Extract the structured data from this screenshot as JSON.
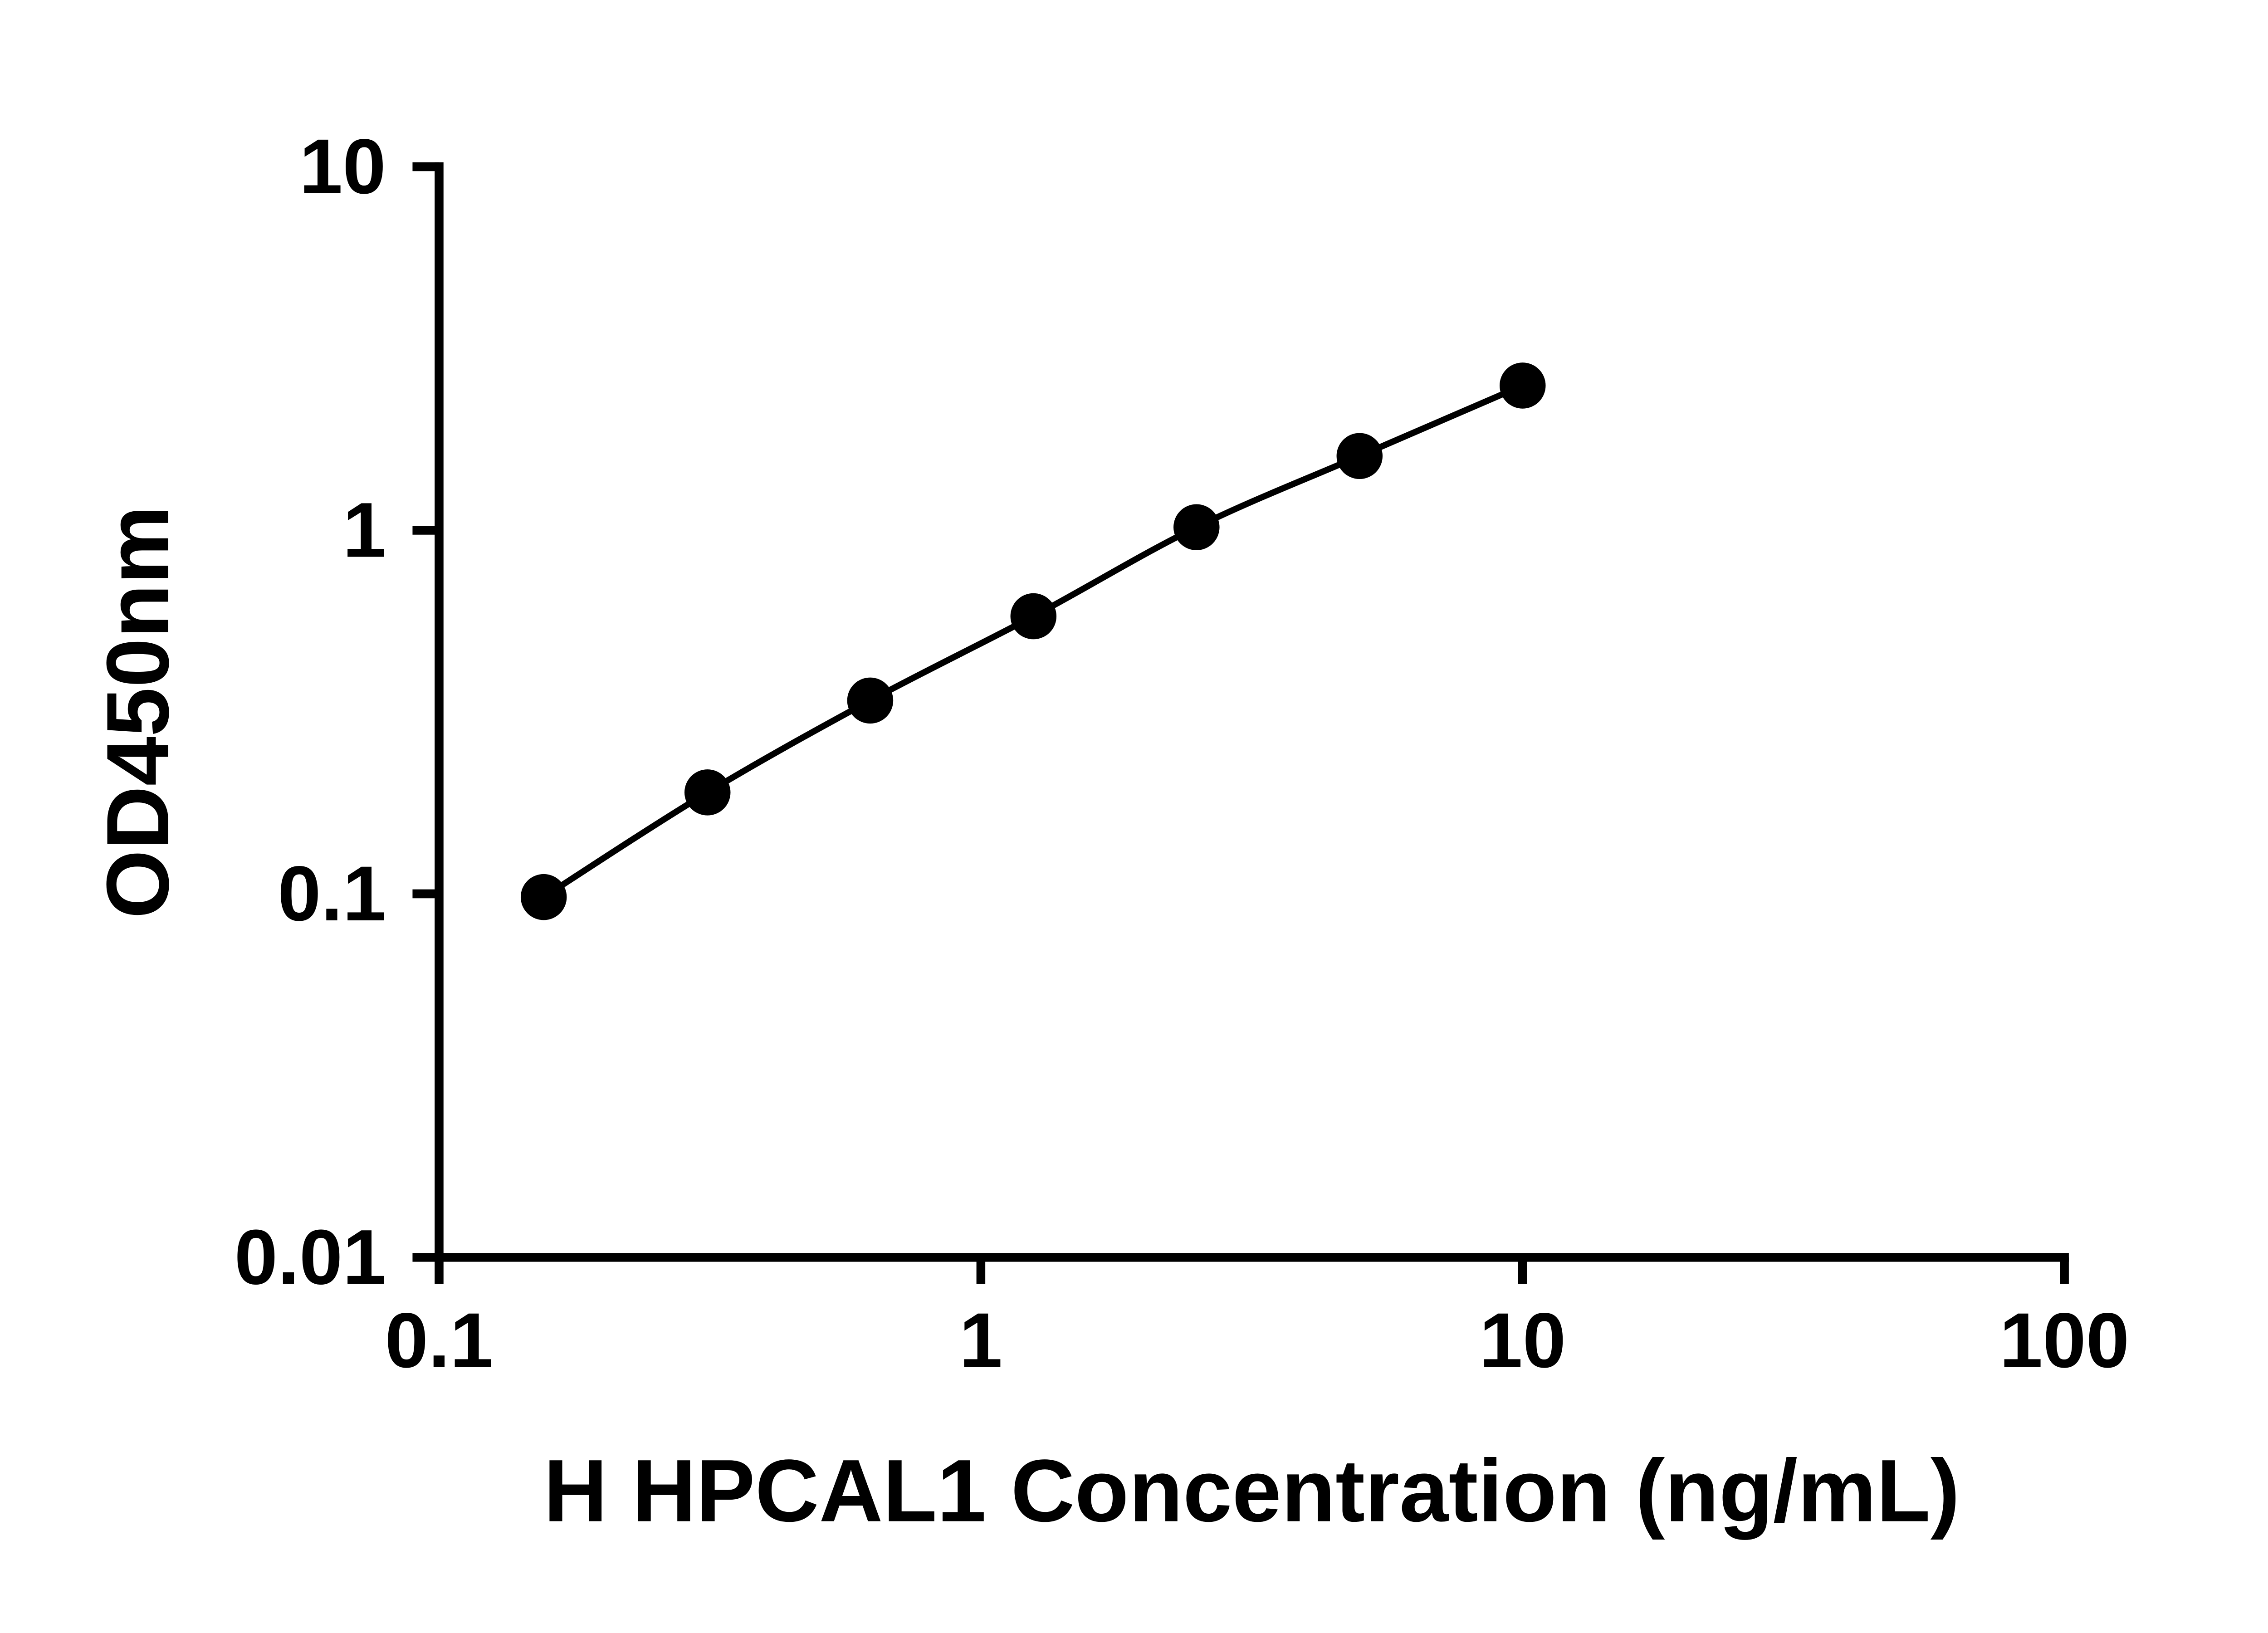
{
  "chart_data": {
    "type": "line",
    "xlabel": "H HPCAL1 Concentration (ng/mL)",
    "ylabel": "OD450nm",
    "x_scale": "log10",
    "y_scale": "log10",
    "xlim": [
      0.1,
      100
    ],
    "ylim": [
      0.01,
      10
    ],
    "x_ticks": [
      0.1,
      1,
      10,
      100
    ],
    "x_tick_labels": [
      "0.1",
      "1",
      "10",
      "100"
    ],
    "y_ticks": [
      0.01,
      0.1,
      1,
      10
    ],
    "y_tick_labels": [
      "0.01",
      "0.1",
      "1",
      "10"
    ],
    "grid": false,
    "legend": false,
    "background_color": "#ffffff",
    "axis_color": "#000000",
    "series": [
      {
        "marker": "circle",
        "color": "#000000",
        "x": [
          0.156,
          0.313,
          0.625,
          1.25,
          2.5,
          5,
          10
        ],
        "y": [
          0.098,
          0.19,
          0.34,
          0.58,
          1.02,
          1.6,
          2.5
        ]
      }
    ]
  }
}
